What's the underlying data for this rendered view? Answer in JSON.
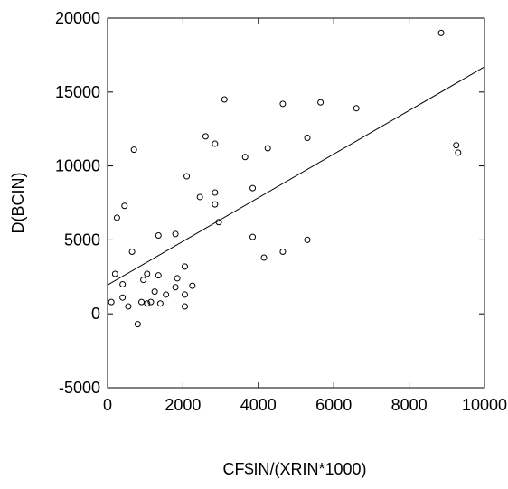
{
  "chart_data": {
    "type": "scatter",
    "title": "",
    "xlabel": "CF$IN/(XRIN*1000)",
    "ylabel": "D(BCIN)",
    "xlim": [
      0,
      10000
    ],
    "ylim": [
      -5000,
      20000
    ],
    "x_ticks": [
      0,
      2000,
      4000,
      6000,
      8000,
      10000
    ],
    "x_tick_labels": [
      "0",
      "2000",
      "4000",
      "6000",
      "8000",
      "10000"
    ],
    "y_ticks": [
      -5000,
      0,
      5000,
      10000,
      15000,
      20000
    ],
    "y_tick_labels": [
      "-5000",
      "0",
      "5000",
      "10000",
      "15000",
      "20000"
    ],
    "grid": false,
    "series": [
      {
        "marker": "open-circle",
        "points": [
          [
            100,
            800
          ],
          [
            200,
            2700
          ],
          [
            250,
            6500
          ],
          [
            400,
            2000
          ],
          [
            400,
            1100
          ],
          [
            450,
            7300
          ],
          [
            550,
            500
          ],
          [
            650,
            4200
          ],
          [
            700,
            11100
          ],
          [
            800,
            -700
          ],
          [
            900,
            800
          ],
          [
            950,
            2300
          ],
          [
            1050,
            2700
          ],
          [
            1050,
            700
          ],
          [
            1150,
            800
          ],
          [
            1250,
            1500
          ],
          [
            1350,
            5300
          ],
          [
            1350,
            2600
          ],
          [
            1400,
            700
          ],
          [
            1550,
            1300
          ],
          [
            1800,
            5400
          ],
          [
            1800,
            1800
          ],
          [
            1850,
            2400
          ],
          [
            2050,
            3200
          ],
          [
            2050,
            1300
          ],
          [
            2050,
            500
          ],
          [
            2100,
            9300
          ],
          [
            2250,
            1900
          ],
          [
            2450,
            7900
          ],
          [
            2600,
            12000
          ],
          [
            2850,
            11500
          ],
          [
            2850,
            8200
          ],
          [
            2850,
            7400
          ],
          [
            2950,
            6200
          ],
          [
            3100,
            14500
          ],
          [
            3650,
            10600
          ],
          [
            3850,
            8500
          ],
          [
            3850,
            5200
          ],
          [
            4150,
            3800
          ],
          [
            4250,
            11200
          ],
          [
            4650,
            14200
          ],
          [
            4650,
            4200
          ],
          [
            5300,
            11900
          ],
          [
            5300,
            5000
          ],
          [
            5650,
            14300
          ],
          [
            6600,
            13900
          ],
          [
            8850,
            19000
          ],
          [
            9250,
            11400
          ],
          [
            9300,
            10900
          ]
        ]
      }
    ],
    "fit_line": {
      "label": "",
      "x": [
        0,
        10000
      ],
      "y": [
        1950,
        16700
      ]
    }
  }
}
